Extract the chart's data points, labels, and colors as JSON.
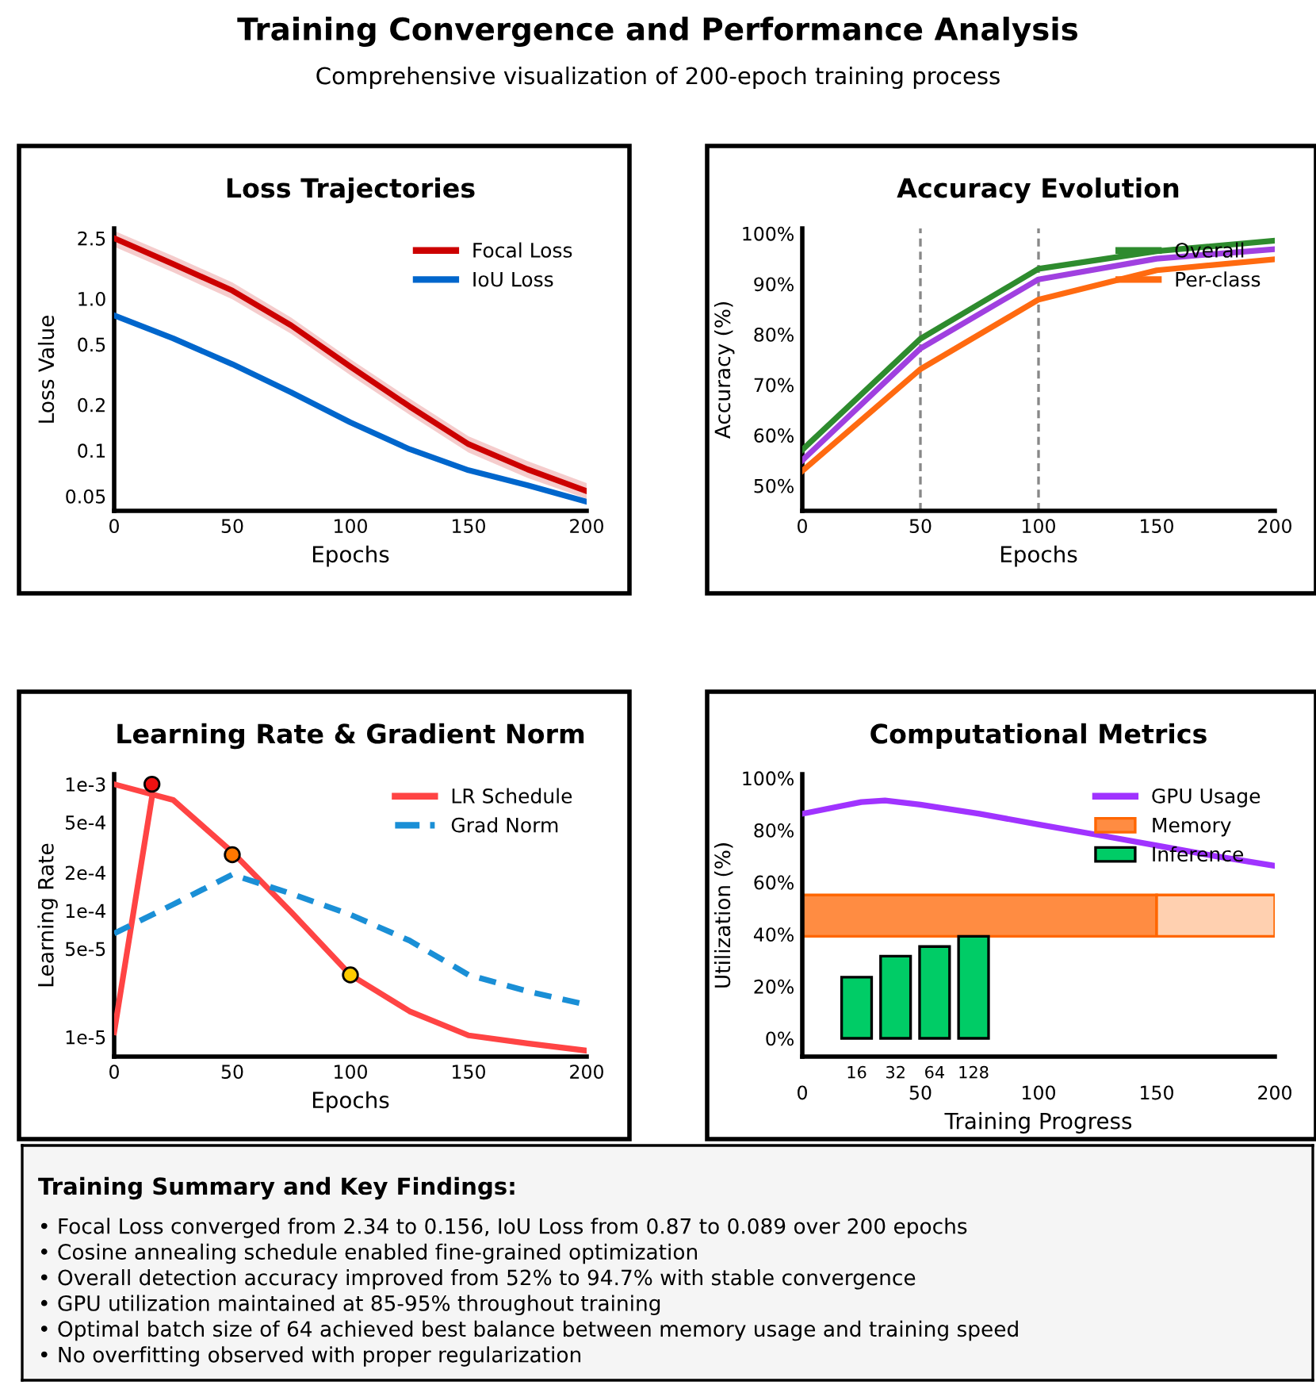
{
  "chart_data": [
    {
      "type": "other",
      "title": "Training Convergence and Performance Analysis",
      "subtitle": "Comprehensive visualization of 200-epoch training process"
    },
    {
      "type": "line",
      "title": "Loss Trajectories",
      "xlabel": "Epochs",
      "ylabel": "Loss Value",
      "log": "y",
      "xlim": [
        0,
        200
      ],
      "xticks": [
        0,
        50,
        100,
        150,
        200
      ],
      "ylim": [
        0.04,
        2.9
      ],
      "yticks": [
        0.05,
        0.1,
        0.2,
        0.5,
        {
          "value": 1,
          "label": "1.0"
        },
        2.5
      ],
      "legend": "top right",
      "grid": false,
      "series": [
        {
          "name": "Focal Loss",
          "color": "#cc0000",
          "x": [
            0,
            25,
            50,
            75,
            100,
            125,
            150,
            175,
            200
          ],
          "values": [
            2.5,
            1.69,
            1.13,
            0.665,
            0.356,
            0.195,
            0.11,
            0.075,
            0.054
          ],
          "lower": [
            2.2,
            1.49,
            0.99,
            0.585,
            0.313,
            0.172,
            0.097,
            0.066,
            0.048
          ],
          "upper": [
            2.8,
            1.91,
            1.28,
            0.75,
            0.4,
            0.22,
            0.124,
            0.085,
            0.061
          ]
        },
        {
          "name": "IoU Loss",
          "color": "#0066cc",
          "x": [
            0,
            25,
            50,
            75,
            100,
            125,
            150,
            175,
            200
          ],
          "values": [
            0.776,
            0.547,
            0.37,
            0.241,
            0.153,
            0.102,
            0.074,
            0.059,
            0.046
          ]
        }
      ]
    },
    {
      "type": "line",
      "title": "Accuracy Evolution",
      "xlabel": "Epochs",
      "ylabel": "Accuracy (%)",
      "xlim": [
        0,
        200
      ],
      "xticks": [
        0,
        50,
        100,
        150,
        200
      ],
      "ylim": [
        45,
        101
      ],
      "yticks": [
        {
          "value": 50,
          "label": "50%"
        },
        {
          "value": 60,
          "label": "60%"
        },
        {
          "value": 70,
          "label": "70%"
        },
        {
          "value": 80,
          "label": "80%"
        },
        {
          "value": 90,
          "label": "90%"
        },
        {
          "value": 100,
          "label": "100%"
        }
      ],
      "legend": "top right",
      "grid": false,
      "ref_lines": [
        {
          "axis": "x",
          "value": 50,
          "color": "#888888",
          "line_style": "dashed"
        },
        {
          "axis": "x",
          "value": 100,
          "color": "#888888",
          "line_style": "dashed"
        }
      ],
      "series": [
        {
          "name": "Overall",
          "color": "#2e8b2e",
          "x": [
            0,
            50,
            100,
            150,
            200
          ],
          "values": [
            57.1,
            79.1,
            93,
            96.5,
            98.6
          ]
        },
        {
          "color": "#a040e0",
          "x": [
            0,
            50,
            100,
            150,
            200
          ],
          "values": [
            55,
            77.2,
            90.9,
            95,
            96.9
          ]
        },
        {
          "name": "Per-class",
          "color": "#ff6a10",
          "x": [
            0,
            50,
            100,
            150,
            200
          ],
          "values": [
            52.9,
            73.1,
            86.9,
            92.7,
            94.9
          ]
        }
      ]
    },
    {
      "type": "line",
      "title": "Learning Rate & Gradient Norm",
      "xlabel": "Epochs",
      "ylabel": "Learning Rate",
      "log": "y",
      "xlim": [
        0,
        200
      ],
      "xticks": [
        0,
        50,
        100,
        150,
        200
      ],
      "ylim": [
        7e-06,
        0.0012
      ],
      "yticks": [
        {
          "value": 1e-05,
          "label": "1e-5"
        },
        {
          "value": 5e-05,
          "label": "5e-5"
        },
        {
          "value": 0.0001,
          "label": "1e-4"
        },
        {
          "value": 0.0002,
          "label": "2e-4"
        },
        {
          "value": 0.0005,
          "label": "5e-4"
        },
        {
          "value": 0.001,
          "label": "1e-3"
        }
      ],
      "legend": "top right",
      "grid": false,
      "series": [
        {
          "name": "LR Schedule",
          "color": "#ff4444",
          "x": [
            0,
            25,
            50,
            75,
            100,
            125,
            150,
            175,
            200
          ],
          "values": [
            0.001,
            0.00075,
            0.00029,
            9.7e-05,
            3.1e-05,
            1.6e-05,
            1.03e-05,
            8.9e-06,
            7.8e-06
          ]
        },
        {
          "color": "#ff4444",
          "x": [
            0,
            16
          ],
          "values": [
            1.09e-05,
            0.00079
          ]
        },
        {
          "name": "Grad Norm",
          "color": "#1a8fd6",
          "line_style": "dashed",
          "x": [
            0,
            25,
            50,
            75,
            100,
            125,
            150,
            175,
            200
          ],
          "values": [
            6.6e-05,
            0.000112,
            0.000193,
            0.000136,
            9.3e-05,
            5.8e-05,
            3.1e-05,
            2.3e-05,
            1.8e-05
          ]
        },
        {
          "type": "scatter",
          "marker": "circle",
          "colors": [
            "#ee1111",
            "#ff7700",
            "#ffcc00"
          ],
          "x": [
            16,
            50,
            100
          ],
          "values": [
            0.001,
            0.000277,
            3.1e-05
          ]
        }
      ]
    },
    {
      "type": "line",
      "title": "Computational Metrics",
      "xlabel": "Training Progress",
      "ylabel": "Utilization (%)",
      "xlim": [
        0,
        200
      ],
      "xticks": [
        0,
        50,
        100,
        150,
        200
      ],
      "ylim": [
        -7,
        101.5
      ],
      "yticks": [
        {
          "value": 0,
          "label": "0%"
        },
        {
          "value": 20,
          "label": "20%"
        },
        {
          "value": 40,
          "label": "40%"
        },
        {
          "value": 60,
          "label": "60%"
        },
        {
          "value": 80,
          "label": "80%"
        },
        {
          "value": 100,
          "label": "100%"
        }
      ],
      "legend": "top right",
      "grid": false,
      "series": [
        {
          "name": "GPU Usage",
          "color": "#a033ff",
          "x": [
            0,
            25,
            35,
            50,
            75,
            100,
            125,
            150,
            175,
            200
          ],
          "values": [
            86.3,
            90.8,
            91.4,
            89.8,
            86.3,
            82.2,
            78.2,
            74.1,
            70,
            66.3
          ]
        },
        {
          "name": "Memory",
          "type": "bar",
          "colors": [
            "#ff8c42",
            "#ffd0b0"
          ],
          "x": [
            75,
            175
          ],
          "values": [
            15.9,
            15.9
          ],
          "base": [
            39.2,
            39.2
          ]
        },
        {
          "name": "Inference",
          "type": "bar",
          "color": "#00cc66",
          "x": [
            23,
            39.5,
            56,
            72.5
          ],
          "values": [
            23.5,
            31.6,
            35.3,
            39.2
          ]
        }
      ],
      "annotations": [
        {
          "text": "16",
          "x": 23,
          "y": 0
        },
        {
          "text": "32",
          "x": 39.5,
          "y": 0
        },
        {
          "text": "64",
          "x": 56,
          "y": 0
        },
        {
          "text": "128",
          "x": 72.5,
          "y": 0
        }
      ]
    },
    {
      "type": "other",
      "title": "Training Summary and Key Findings:",
      "annotations": [
        "• Focal Loss converged from 2.34 to 0.156, IoU Loss from 0.87 to 0.089 over 200 epochs",
        "• Cosine annealing schedule enabled fine-grained optimization",
        "• Overall detection accuracy improved from 52% to 94.7% with stable convergence",
        "• GPU utilization maintained at 85-95% throughout training",
        "• Optimal batch size of 64 achieved best balance between memory usage and training speed",
        "• No overfitting observed with proper regularization"
      ]
    }
  ]
}
